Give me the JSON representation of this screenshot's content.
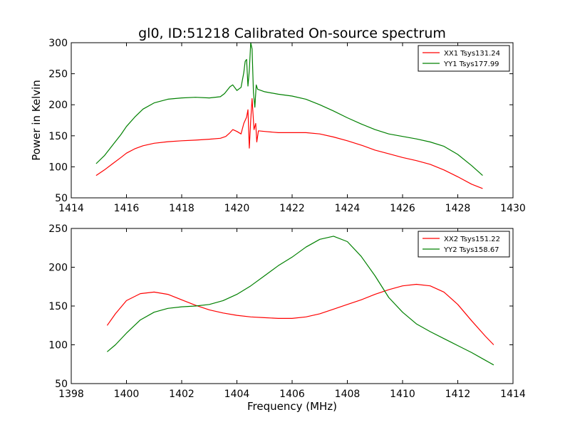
{
  "title": "gl0, ID:51218 Calibrated On-source spectrum",
  "chart_data": [
    {
      "type": "line",
      "xlabel": "",
      "ylabel": "Power in Kelvin",
      "xlim": [
        1414,
        1430
      ],
      "ylim": [
        50,
        300
      ],
      "x_ticks": [
        1414,
        1416,
        1418,
        1420,
        1422,
        1424,
        1426,
        1428,
        1430
      ],
      "y_ticks": [
        50,
        100,
        150,
        200,
        250,
        300
      ],
      "legend": "top-right",
      "grid": false,
      "series": [
        {
          "name": "XX1 Tsys131.24",
          "color": "#ff0000",
          "points": [
            [
              1414.9,
              86
            ],
            [
              1415.2,
              95
            ],
            [
              1415.5,
              105
            ],
            [
              1415.8,
              115
            ],
            [
              1416.0,
              122
            ],
            [
              1416.3,
              129
            ],
            [
              1416.6,
              134
            ],
            [
              1417.0,
              138
            ],
            [
              1417.5,
              140.5
            ],
            [
              1418.0,
              142
            ],
            [
              1418.5,
              143
            ],
            [
              1419.0,
              144.5
            ],
            [
              1419.4,
              146
            ],
            [
              1419.6,
              149
            ],
            [
              1419.75,
              155
            ],
            [
              1419.85,
              160
            ],
            [
              1420.0,
              157
            ],
            [
              1420.15,
              153
            ],
            [
              1420.25,
              170
            ],
            [
              1420.35,
              180
            ],
            [
              1420.4,
              192
            ],
            [
              1420.45,
              130
            ],
            [
              1420.5,
              175
            ],
            [
              1420.55,
              210
            ],
            [
              1420.62,
              160
            ],
            [
              1420.68,
              170
            ],
            [
              1420.72,
              140
            ],
            [
              1420.78,
              158
            ],
            [
              1421.0,
              157
            ],
            [
              1421.5,
              155
            ],
            [
              1422.0,
              155
            ],
            [
              1422.5,
              155
            ],
            [
              1423.0,
              153
            ],
            [
              1423.5,
              148
            ],
            [
              1424.0,
              142
            ],
            [
              1424.5,
              135
            ],
            [
              1425.0,
              127
            ],
            [
              1425.5,
              121
            ],
            [
              1426.0,
              115
            ],
            [
              1426.5,
              110
            ],
            [
              1427.0,
              104
            ],
            [
              1427.5,
              95
            ],
            [
              1428.0,
              84
            ],
            [
              1428.5,
              72
            ],
            [
              1428.9,
              65
            ]
          ]
        },
        {
          "name": "YY1 Tsys177.99",
          "color": "#008000",
          "points": [
            [
              1414.9,
              105
            ],
            [
              1415.2,
              118
            ],
            [
              1415.5,
              135
            ],
            [
              1415.8,
              152
            ],
            [
              1416.0,
              165
            ],
            [
              1416.3,
              180
            ],
            [
              1416.6,
              193
            ],
            [
              1417.0,
              203
            ],
            [
              1417.5,
              209
            ],
            [
              1418.0,
              211
            ],
            [
              1418.5,
              212
            ],
            [
              1419.0,
              211
            ],
            [
              1419.4,
              213
            ],
            [
              1419.55,
              218
            ],
            [
              1419.75,
              229
            ],
            [
              1419.85,
              232
            ],
            [
              1420.0,
              223
            ],
            [
              1420.15,
              228
            ],
            [
              1420.25,
              252
            ],
            [
              1420.3,
              270
            ],
            [
              1420.35,
              273
            ],
            [
              1420.4,
              230
            ],
            [
              1420.45,
              255
            ],
            [
              1420.5,
              300
            ],
            [
              1420.55,
              290
            ],
            [
              1420.6,
              220
            ],
            [
              1420.65,
              196
            ],
            [
              1420.7,
              232
            ],
            [
              1420.75,
              225
            ],
            [
              1421.0,
              221
            ],
            [
              1421.5,
              217
            ],
            [
              1422.0,
              214
            ],
            [
              1422.5,
              209
            ],
            [
              1423.0,
              200
            ],
            [
              1423.5,
              190
            ],
            [
              1424.0,
              179
            ],
            [
              1424.5,
              169
            ],
            [
              1425.0,
              160
            ],
            [
              1425.5,
              153
            ],
            [
              1426.0,
              149
            ],
            [
              1426.5,
              145
            ],
            [
              1427.0,
              140
            ],
            [
              1427.5,
              133
            ],
            [
              1428.0,
              120
            ],
            [
              1428.5,
              102
            ],
            [
              1428.9,
              86
            ]
          ]
        }
      ]
    },
    {
      "type": "line",
      "xlabel": "Frequency (MHz)",
      "ylabel": "",
      "xlim": [
        1398,
        1414
      ],
      "ylim": [
        50,
        250
      ],
      "x_ticks": [
        1398,
        1400,
        1402,
        1404,
        1406,
        1408,
        1410,
        1412,
        1414
      ],
      "y_ticks": [
        50,
        100,
        150,
        200,
        250
      ],
      "legend": "top-right",
      "grid": false,
      "series": [
        {
          "name": "XX2 Tsys151.22",
          "color": "#ff0000",
          "points": [
            [
              1399.3,
              125
            ],
            [
              1399.6,
              140
            ],
            [
              1400.0,
              157
            ],
            [
              1400.5,
              166
            ],
            [
              1401.0,
              168
            ],
            [
              1401.5,
              165
            ],
            [
              1402.0,
              158
            ],
            [
              1402.5,
              151
            ],
            [
              1403.0,
              145
            ],
            [
              1403.5,
              141
            ],
            [
              1404.0,
              138
            ],
            [
              1404.5,
              136
            ],
            [
              1405.0,
              135
            ],
            [
              1405.5,
              134
            ],
            [
              1406.0,
              134
            ],
            [
              1406.5,
              136
            ],
            [
              1407.0,
              140
            ],
            [
              1407.5,
              146
            ],
            [
              1408.0,
              152
            ],
            [
              1408.5,
              158
            ],
            [
              1409.0,
              165
            ],
            [
              1409.5,
              171
            ],
            [
              1410.0,
              176
            ],
            [
              1410.5,
              178
            ],
            [
              1411.0,
              176
            ],
            [
              1411.5,
              168
            ],
            [
              1412.0,
              152
            ],
            [
              1412.5,
              131
            ],
            [
              1413.0,
              111
            ],
            [
              1413.3,
              100
            ]
          ]
        },
        {
          "name": "YY2 Tsys158.67",
          "color": "#008000",
          "points": [
            [
              1399.3,
              91
            ],
            [
              1399.6,
              100
            ],
            [
              1400.0,
              115
            ],
            [
              1400.5,
              132
            ],
            [
              1401.0,
              142
            ],
            [
              1401.5,
              147
            ],
            [
              1402.0,
              149
            ],
            [
              1402.5,
              150
            ],
            [
              1403.0,
              152
            ],
            [
              1403.5,
              157
            ],
            [
              1404.0,
              165
            ],
            [
              1404.5,
              176
            ],
            [
              1405.0,
              189
            ],
            [
              1405.5,
              202
            ],
            [
              1406.0,
              213
            ],
            [
              1406.5,
              226
            ],
            [
              1407.0,
              236
            ],
            [
              1407.5,
              240
            ],
            [
              1408.0,
              233
            ],
            [
              1408.5,
              214
            ],
            [
              1409.0,
              189
            ],
            [
              1409.5,
              161
            ],
            [
              1410.0,
              142
            ],
            [
              1410.5,
              127
            ],
            [
              1411.0,
              117
            ],
            [
              1411.5,
              108
            ],
            [
              1412.0,
              99
            ],
            [
              1412.5,
              90
            ],
            [
              1413.0,
              80
            ],
            [
              1413.3,
              74
            ]
          ]
        }
      ]
    }
  ]
}
